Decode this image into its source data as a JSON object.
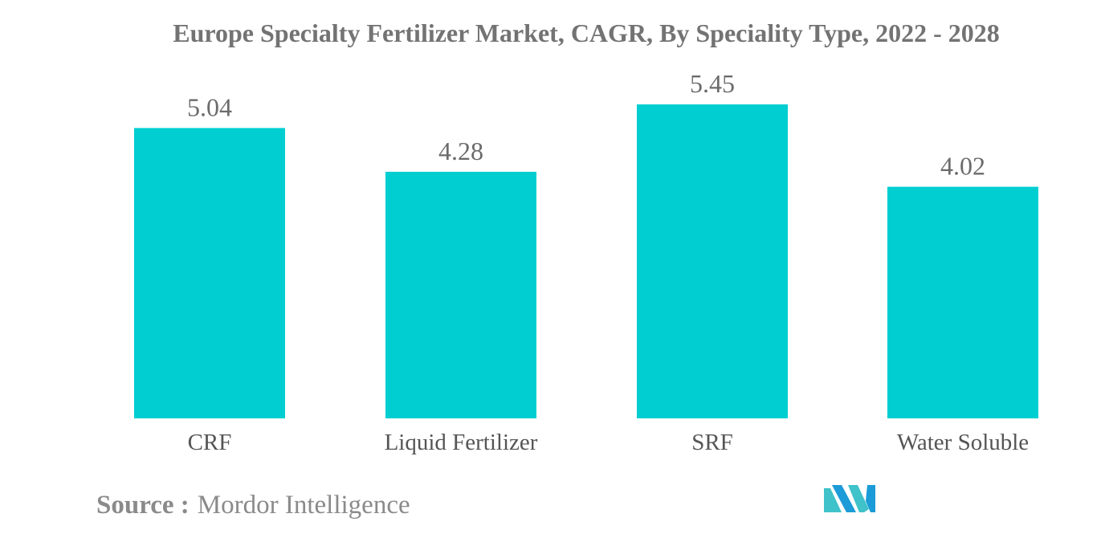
{
  "chart_data": {
    "type": "bar",
    "title": "Europe Specialty Fertilizer Market, CAGR, By Speciality Type, 2022 - 2028",
    "categories": [
      "CRF",
      "Liquid Fertilizer",
      "SRF",
      "Water Soluble"
    ],
    "values": [
      5.04,
      4.28,
      5.45,
      4.02
    ],
    "value_labels": [
      "5.04",
      "4.28",
      "5.45",
      "4.02"
    ],
    "xlabel": "",
    "ylabel": "",
    "ylim": [
      0,
      5.45
    ],
    "grid": false,
    "legend": "none",
    "bar_color": "#00CED1"
  },
  "source": {
    "label": "Source :",
    "text": "Mordor Intelligence"
  },
  "logo": {
    "icon": "mordor-intelligence-logo-icon",
    "colors": [
      "#1B9BD7",
      "#3FC2C9"
    ]
  }
}
